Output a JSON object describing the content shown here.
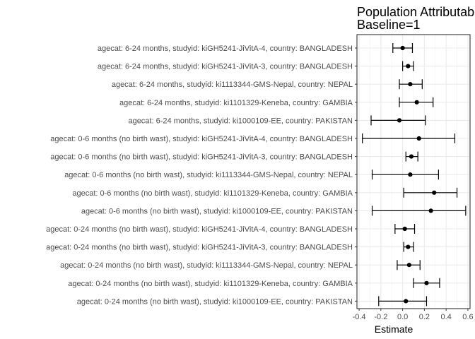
{
  "chart_data": {
    "type": "forest",
    "title_lines": [
      "Population Attributable",
      "Baseline=1"
    ],
    "xlabel": "Estimate",
    "xlim": [
      -0.42,
      0.62
    ],
    "xticks": [
      -0.4,
      -0.2,
      0.0,
      0.2,
      0.4,
      0.6
    ],
    "xtick_labels": [
      "-0.4",
      "-0.2",
      "0.0",
      "0.2",
      "0.4",
      "0.6"
    ],
    "grid": true,
    "rows": [
      {
        "label": "agecat: 6-24 months, studyid: kiGH5241-JiVitA-4, country: BANGLADESH",
        "est": 0.0,
        "lo": -0.09,
        "hi": 0.09
      },
      {
        "label": "agecat: 6-24 months, studyid: kiGH5241-JiVitA-3, country: BANGLADESH",
        "est": 0.05,
        "lo": 0.0,
        "hi": 0.1
      },
      {
        "label": "agecat: 6-24 months, studyid: ki1113344-GMS-Nepal, country: NEPAL",
        "est": 0.07,
        "lo": -0.03,
        "hi": 0.18
      },
      {
        "label": "agecat: 6-24 months, studyid: ki1101329-Keneba, country: GAMBIA",
        "est": 0.13,
        "lo": -0.03,
        "hi": 0.28
      },
      {
        "label": "agecat: 6-24 months, studyid: ki1000109-EE, country: PAKISTAN",
        "est": -0.03,
        "lo": -0.29,
        "hi": 0.21
      },
      {
        "label": "agecat: 0-6 months (no birth wast), studyid: kiGH5241-JiVitA-4, country: BANGLADESH",
        "est": 0.15,
        "lo": -0.37,
        "hi": 0.48
      },
      {
        "label": "agecat: 0-6 months (no birth wast), studyid: kiGH5241-JiVitA-3, country: BANGLADESH",
        "est": 0.08,
        "lo": 0.03,
        "hi": 0.14
      },
      {
        "label": "agecat: 0-6 months (no birth wast), studyid: ki1113344-GMS-Nepal, country: NEPAL",
        "est": 0.07,
        "lo": -0.28,
        "hi": 0.33
      },
      {
        "label": "agecat: 0-6 months (no birth wast), studyid: ki1101329-Keneba, country: GAMBIA",
        "est": 0.29,
        "lo": 0.01,
        "hi": 0.5
      },
      {
        "label": "agecat: 0-6 months (no birth wast), studyid: ki1000109-EE, country: PAKISTAN",
        "est": 0.26,
        "lo": -0.28,
        "hi": 0.58
      },
      {
        "label": "agecat: 0-24 months (no birth wast), studyid: kiGH5241-JiVitA-4, country: BANGLADESH",
        "est": 0.02,
        "lo": -0.07,
        "hi": 0.11
      },
      {
        "label": "agecat: 0-24 months (no birth wast), studyid: kiGH5241-JiVitA-3, country: BANGLADESH",
        "est": 0.05,
        "lo": 0.01,
        "hi": 0.1
      },
      {
        "label": "agecat: 0-24 months (no birth wast), studyid: ki1113344-GMS-Nepal, country: NEPAL",
        "est": 0.06,
        "lo": -0.05,
        "hi": 0.16
      },
      {
        "label": "agecat: 0-24 months (no birth wast), studyid: ki1101329-Keneba, country: GAMBIA",
        "est": 0.22,
        "lo": 0.1,
        "hi": 0.34
      },
      {
        "label": "agecat: 0-24 months (no birth wast), studyid: ki1000109-EE, country: PAKISTAN",
        "est": 0.03,
        "lo": -0.22,
        "hi": 0.22
      }
    ]
  }
}
